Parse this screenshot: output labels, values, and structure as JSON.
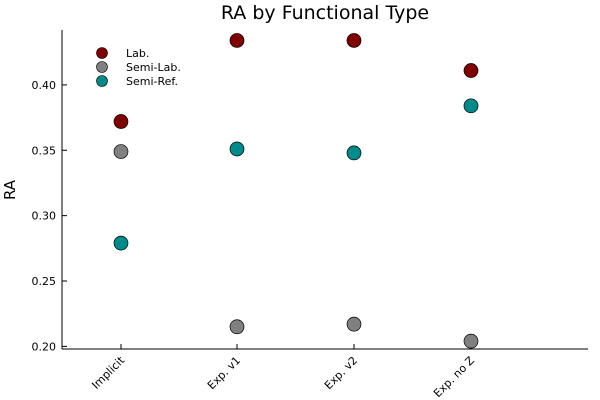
{
  "chart_data": {
    "type": "scatter",
    "title": "RA by Functional Type",
    "xlabel": "",
    "ylabel": "RA",
    "categories": [
      "Implicit",
      "Exp. v1",
      "Exp. v2",
      "Exp. no Z"
    ],
    "ylim": [
      0.198,
      0.442
    ],
    "yticks": [
      0.2,
      0.25,
      0.3,
      0.35,
      0.4
    ],
    "ytick_labels": [
      "0.20",
      "0.25",
      "0.30",
      "0.35",
      "0.40"
    ],
    "grid": false,
    "legend_position": "top-left",
    "series": [
      {
        "name": "Lab.",
        "color": "#800000",
        "values": [
          0.372,
          0.434,
          0.434,
          0.411
        ]
      },
      {
        "name": "Semi-Lab.",
        "color": "#808080",
        "values": [
          0.349,
          0.215,
          0.217,
          0.204
        ]
      },
      {
        "name": "Semi-Ref.",
        "color": "#008b8b",
        "values": [
          0.279,
          0.351,
          0.348,
          0.384
        ]
      }
    ]
  }
}
